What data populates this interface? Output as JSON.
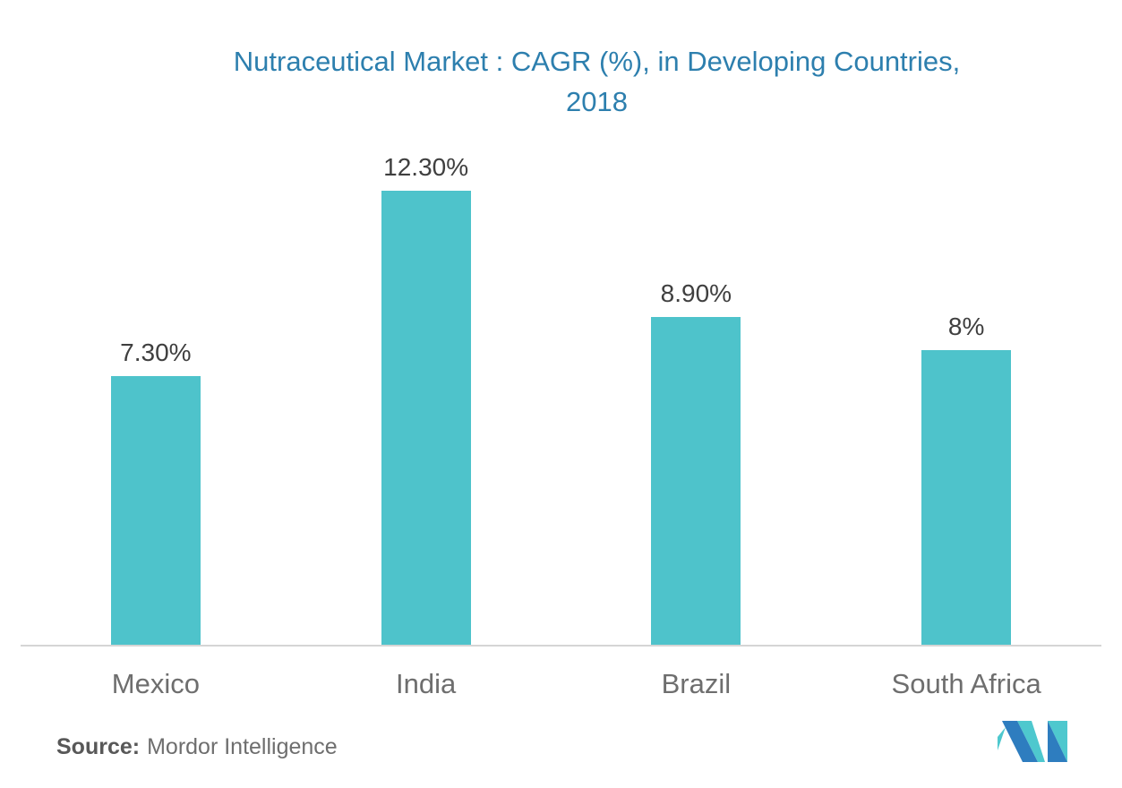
{
  "chart_data": {
    "type": "bar",
    "title": "Nutraceutical Market : CAGR (%), in Developing Countries, 2018",
    "title_lines": {
      "line1": "Nutraceutical Market : CAGR (%), in Developing Countries,",
      "line2": "2018"
    },
    "categories": [
      "Mexico",
      "India",
      "Brazil",
      "South Africa"
    ],
    "values": [
      7.3,
      12.3,
      8.9,
      8
    ],
    "value_labels": [
      "7.30%",
      "12.30%",
      "8.90%",
      "8%"
    ],
    "xlabel": "",
    "ylabel": "",
    "ylim": [
      0,
      12.3
    ],
    "grid": false,
    "legend": false,
    "axis_ticks_visible": false
  },
  "source": {
    "label": "Source:",
    "text": "Mordor Intelligence"
  },
  "logo": {
    "name": "mordor-intelligence-logo"
  },
  "colors": {
    "bar_teal": "#4ec3cb",
    "title_blue": "#2d7fae",
    "value_label": "#3f3f3f",
    "category_label": "#6e6e6e",
    "source_text": "#6e6e6e",
    "axis_line": "#d5d5d5",
    "logo_blue": "#2e7dbf",
    "logo_teal": "#4ec8ce"
  }
}
